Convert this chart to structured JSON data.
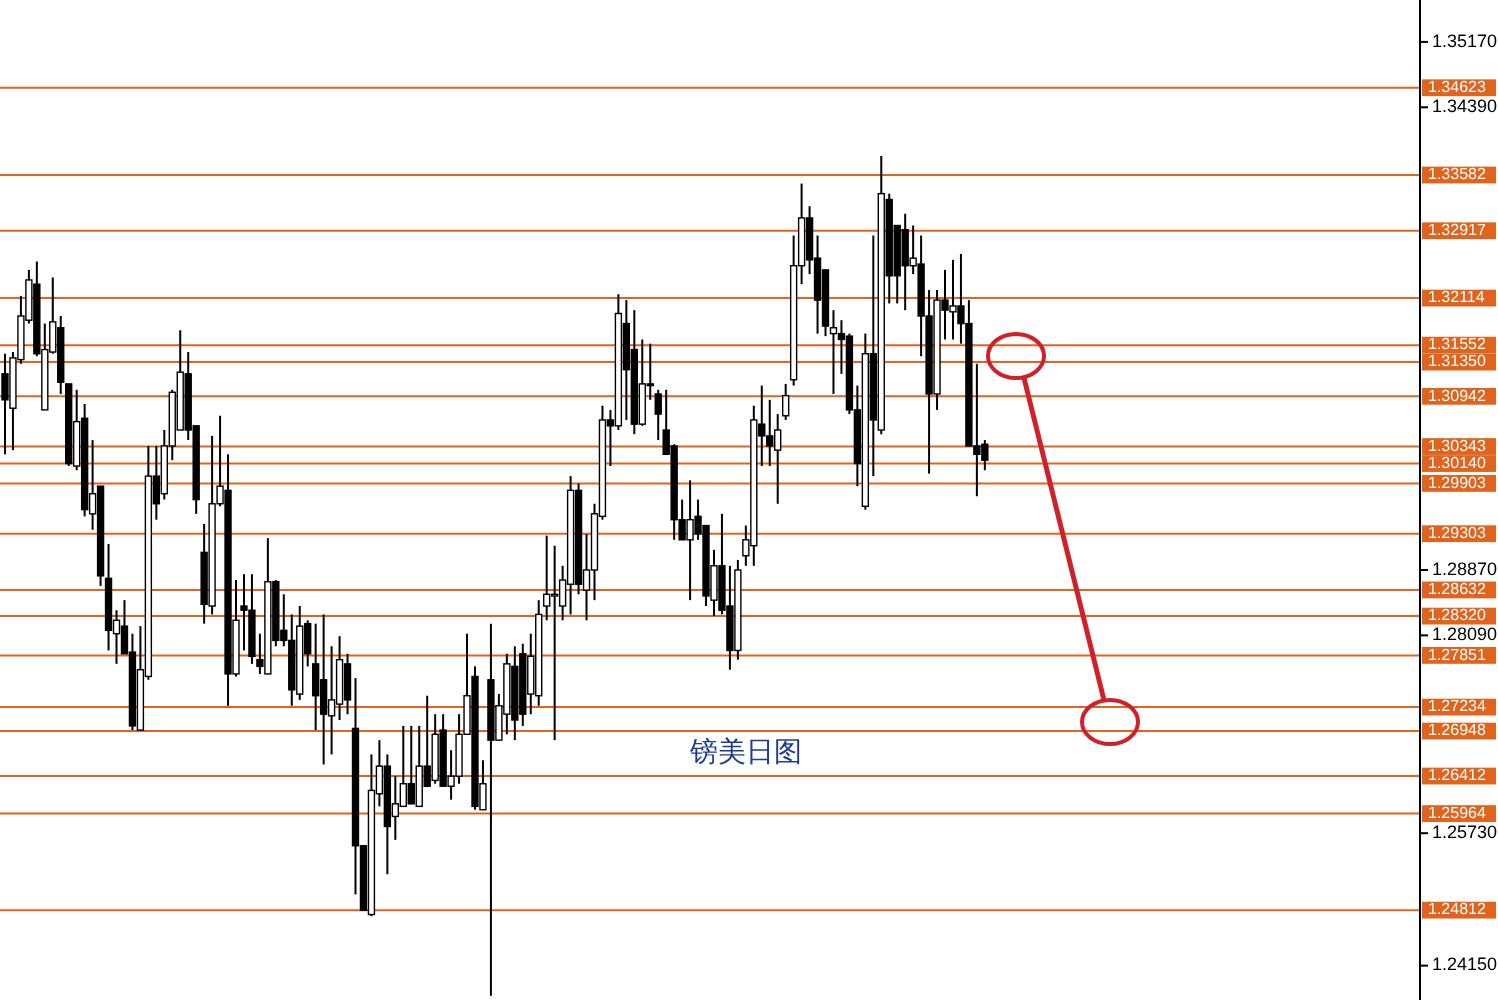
{
  "chart_data": {
    "type": "candlestick",
    "categories": [
      null,
      null,
      null,
      null,
      null,
      null,
      null,
      null,
      null,
      null,
      null,
      null,
      null,
      null,
      null,
      null,
      null,
      null,
      null,
      null,
      null,
      null,
      null,
      null,
      null,
      null,
      null,
      null,
      null,
      null,
      null,
      null,
      null,
      null,
      null,
      null,
      null,
      null,
      null,
      null,
      null,
      null,
      null,
      null,
      null,
      null,
      null,
      null,
      null,
      null,
      null,
      null,
      null,
      null,
      null,
      null,
      null,
      null,
      null,
      null,
      null,
      null,
      null,
      null,
      null,
      null,
      null,
      null,
      null,
      null,
      null,
      null,
      null,
      null,
      null,
      null,
      null,
      null,
      null,
      null,
      null,
      null,
      null,
      null,
      null,
      null,
      null,
      null,
      null,
      null,
      null,
      null,
      null,
      null,
      null,
      null,
      null,
      null,
      null,
      null,
      null,
      null,
      null,
      null,
      null,
      null,
      null,
      null,
      null,
      null,
      null,
      null,
      null,
      null,
      null,
      null,
      null,
      null,
      null,
      null,
      null,
      null,
      null,
      null,
      null,
      null,
      null,
      null,
      null,
      null,
      null,
      null,
      null,
      null,
      null,
      null,
      null,
      null,
      null,
      null,
      null,
      null,
      null,
      null,
      null,
      null,
      null,
      null,
      null,
      null,
      null,
      null,
      null,
      null,
      null,
      null,
      null,
      null,
      null,
      null,
      null,
      null,
      null,
      null,
      null,
      null,
      null,
      null,
      null,
      null,
      null,
      null,
      null,
      null,
      null,
      null,
      null,
      null
    ],
    "ohlc": [
      [
        1.3121,
        1.3145,
        1.3025,
        1.309
      ],
      [
        1.308,
        1.3147,
        1.303,
        1.314
      ],
      [
        1.3138,
        1.3214,
        1.3133,
        1.319
      ],
      [
        1.3185,
        1.3245,
        1.3181,
        1.3233
      ],
      [
        1.3228,
        1.3255,
        1.3142,
        1.3145
      ],
      [
        1.3078,
        1.3181,
        1.3078,
        1.315
      ],
      [
        1.3147,
        1.3236,
        1.3145,
        1.3183
      ],
      [
        1.3176,
        1.319,
        1.3097,
        1.3111
      ],
      [
        1.3109,
        1.3109,
        1.3011,
        1.3014
      ],
      [
        1.3011,
        1.3102,
        1.3006,
        1.3064
      ],
      [
        1.3068,
        1.3085,
        1.2951,
        1.2959
      ],
      [
        1.2954,
        1.3042,
        1.2935,
        1.2978
      ],
      [
        1.2987,
        1.2987,
        1.2868,
        1.288
      ],
      [
        1.2877,
        1.2918,
        1.2791,
        1.2815
      ],
      [
        1.2811,
        1.2839,
        1.2775,
        1.2827
      ],
      [
        1.282,
        1.2851,
        1.2787,
        1.2787
      ],
      [
        1.2789,
        1.2811,
        1.2696,
        1.2701
      ],
      [
        1.2696,
        1.282,
        1.2696,
        1.2768
      ],
      [
        1.276,
        1.3035,
        1.2756,
        1.2999
      ],
      [
        1.2999,
        1.3035,
        1.2947,
        1.2966
      ],
      [
        1.2978,
        1.3054,
        1.2971,
        1.3035
      ],
      [
        1.3035,
        1.3102,
        1.3018,
        1.3099
      ],
      [
        1.3054,
        1.3173,
        1.3054,
        1.3123
      ],
      [
        1.3121,
        1.3147,
        1.3042,
        1.3054
      ],
      [
        1.3059,
        1.3059,
        1.2954,
        1.2971
      ],
      [
        1.2908,
        1.2942,
        1.2823,
        1.2846
      ],
      [
        1.2844,
        1.3047,
        1.2834,
        1.2966
      ],
      [
        1.2966,
        1.3071,
        1.2963,
        1.2987
      ],
      [
        1.2982,
        1.3025,
        1.2725,
        1.2763
      ],
      [
        1.2763,
        1.2875,
        1.276,
        1.2827
      ],
      [
        1.2844,
        1.2882,
        1.2791,
        1.2839
      ],
      [
        1.2839,
        1.2882,
        1.2775,
        1.2784
      ],
      [
        1.278,
        1.2811,
        1.2763,
        1.2772
      ],
      [
        1.2763,
        1.2925,
        1.2763,
        1.2873
      ],
      [
        1.2873,
        1.2875,
        1.2796,
        1.2803
      ],
      [
        1.2815,
        1.2858,
        1.2796,
        1.2803
      ],
      [
        1.2803,
        1.2834,
        1.2725,
        1.2744
      ],
      [
        1.2739,
        1.2844,
        1.2732,
        1.282
      ],
      [
        1.2823,
        1.2827,
        1.2772,
        1.2787
      ],
      [
        1.2775,
        1.2823,
        1.2696,
        1.2737
      ],
      [
        1.2756,
        1.2834,
        1.2655,
        1.2715
      ],
      [
        1.2713,
        1.2796,
        1.2667,
        1.2732
      ],
      [
        1.2727,
        1.2808,
        1.2708,
        1.278
      ],
      [
        1.2775,
        1.2787,
        1.2715,
        1.2732
      ],
      [
        1.2698,
        1.2758,
        1.25,
        1.2558
      ],
      [
        1.2558,
        1.2558,
        1.2481,
        1.2481
      ],
      [
        1.2476,
        1.2667,
        1.2474,
        1.2624
      ],
      [
        1.262,
        1.2684,
        1.2605,
        1.2653
      ],
      [
        1.2653,
        1.2667,
        1.2524,
        1.2581
      ],
      [
        1.2593,
        1.2641,
        1.2565,
        1.2608
      ],
      [
        1.2605,
        1.2701,
        1.2605,
        1.2632
      ],
      [
        1.2632,
        1.2701,
        1.2608,
        1.2608
      ],
      [
        1.2605,
        1.2701,
        1.2605,
        1.2653
      ],
      [
        1.2653,
        1.2737,
        1.2629,
        1.2629
      ],
      [
        1.2636,
        1.2715,
        1.2632,
        1.2691
      ],
      [
        1.2696,
        1.2715,
        1.2629,
        1.2629
      ],
      [
        1.2629,
        1.2672,
        1.2613,
        1.2641
      ],
      [
        1.2641,
        1.2715,
        1.2632,
        1.2691
      ],
      [
        1.2691,
        1.2811,
        1.2691,
        1.2737
      ],
      [
        1.276,
        1.2772,
        1.2601,
        1.2605
      ],
      [
        1.2601,
        1.266,
        1.2601,
        1.2632
      ],
      [
        1.2756,
        1.2823,
        1.2379,
        1.2684
      ],
      [
        1.2684,
        1.2739,
        1.2684,
        1.2725
      ],
      [
        1.2715,
        1.2787,
        1.2691,
        1.2775
      ],
      [
        1.2772,
        1.2796,
        1.2684,
        1.2708
      ],
      [
        1.2787,
        1.2799,
        1.2701,
        1.2715
      ],
      [
        1.2739,
        1.2811,
        1.2715,
        1.2784
      ],
      [
        1.2737,
        1.2851,
        1.2725,
        1.2834
      ],
      [
        1.2844,
        1.2928,
        1.2827,
        1.2858
      ],
      [
        1.2856,
        1.2916,
        1.2684,
        1.2858
      ],
      [
        1.2844,
        1.2892,
        1.2827,
        1.2875
      ],
      [
        1.287,
        1.2999,
        1.2834,
        1.2982
      ],
      [
        1.2982,
        1.299,
        1.2858,
        1.287
      ],
      [
        1.2863,
        1.293,
        1.2827,
        1.2887
      ],
      [
        1.2887,
        1.2966,
        1.2851,
        1.2954
      ],
      [
        1.2951,
        1.3083,
        1.2947,
        1.3066
      ],
      [
        1.3066,
        1.3078,
        1.3011,
        1.3059
      ],
      [
        1.3059,
        1.3216,
        1.3054,
        1.3193
      ],
      [
        1.3181,
        1.3209,
        1.3066,
        1.3126
      ],
      [
        1.315,
        1.3197,
        1.3049,
        1.3061
      ],
      [
        1.3061,
        1.3162,
        1.3059,
        1.3109
      ],
      [
        1.3109,
        1.3157,
        1.309,
        1.3107
      ],
      [
        1.3097,
        1.3102,
        1.3042,
        1.3073
      ],
      [
        1.3054,
        1.3102,
        1.3025,
        1.3025
      ],
      [
        1.3035,
        1.3037,
        1.2923,
        1.2947
      ],
      [
        1.2947,
        1.2971,
        1.2923,
        1.2923
      ],
      [
        1.2923,
        1.2994,
        1.2851,
        1.2947
      ],
      [
        1.2951,
        1.2971,
        1.2923,
        1.293
      ],
      [
        1.294,
        1.294,
        1.2844,
        1.2856
      ],
      [
        1.2851,
        1.2911,
        1.2832,
        1.2892
      ],
      [
        1.2892,
        1.2954,
        1.2834,
        1.2839
      ],
      [
        1.2844,
        1.2892,
        1.2768,
        1.2791
      ],
      [
        1.2791,
        1.2899,
        1.278,
        1.2887
      ],
      [
        1.2904,
        1.294,
        1.2892,
        1.2923
      ],
      [
        1.2916,
        1.3083,
        1.2892,
        1.3066
      ],
      [
        1.3061,
        1.3107,
        1.3011,
        1.3047
      ],
      [
        1.3047,
        1.309,
        1.3011,
        1.3035
      ],
      [
        1.303,
        1.3073,
        1.2966,
        1.3054
      ],
      [
        1.3071,
        1.3109,
        1.3066,
        1.3095
      ],
      [
        1.3114,
        1.3286,
        1.3107,
        1.325
      ],
      [
        1.325,
        1.3348,
        1.3228,
        1.3307
      ],
      [
        1.3307,
        1.3321,
        1.324,
        1.3257
      ],
      [
        1.3259,
        1.3286,
        1.3169,
        1.3209
      ],
      [
        1.3245,
        1.3245,
        1.3166,
        1.3178
      ],
      [
        1.3169,
        1.3197,
        1.3097,
        1.3176
      ],
      [
        1.3169,
        1.3185,
        1.3121,
        1.3162
      ],
      [
        1.3166,
        1.3169,
        1.3073,
        1.3078
      ],
      [
        1.3078,
        1.3107,
        1.2987,
        1.3014
      ],
      [
        1.2963,
        1.3169,
        1.2959,
        1.3145
      ],
      [
        1.3145,
        1.3286,
        1.2999,
        1.3066
      ],
      [
        1.3054,
        1.3381,
        1.3049,
        1.3336
      ],
      [
        1.3329,
        1.3336,
        1.3205,
        1.3238
      ],
      [
        1.3298,
        1.3298,
        1.3205,
        1.3238
      ],
      [
        1.3293,
        1.3312,
        1.3197,
        1.325
      ],
      [
        1.325,
        1.3298,
        1.324,
        1.3259
      ],
      [
        1.3252,
        1.3286,
        1.3142,
        1.319
      ],
      [
        1.319,
        1.3221,
        1.3002,
        1.3097
      ],
      [
        1.3097,
        1.3221,
        1.3078,
        1.3209
      ],
      [
        1.3209,
        1.3245,
        1.3162,
        1.3197
      ],
      [
        1.3195,
        1.3257,
        1.3162,
        1.3202
      ],
      [
        1.3202,
        1.3264,
        1.3157,
        1.3181
      ],
      [
        1.3181,
        1.3209,
        1.3035,
        1.3035
      ],
      [
        1.3035,
        1.3133,
        1.2975,
        1.3025
      ],
      [
        1.3037,
        1.3042,
        1.3006,
        1.3018
      ],
      null,
      null,
      null,
      null,
      null,
      null,
      null,
      null,
      null,
      null,
      null,
      null,
      null,
      null,
      null,
      null,
      null,
      null,
      null,
      null,
      null,
      null,
      null,
      null,
      null,
      null,
      null,
      null,
      null,
      null,
      null,
      null,
      null,
      null,
      null,
      null,
      null,
      null,
      null,
      null,
      null,
      null,
      null,
      null,
      null,
      null,
      null,
      null,
      null,
      null,
      null,
      null,
      null,
      null
    ],
    "ylim": [
      1.2374,
      1.3567
    ],
    "yticks": [
      {
        "value": 1.3517,
        "label": "1.35170"
      },
      {
        "value": 1.3439,
        "label": "1.34390"
      },
      {
        "value": 1.2887,
        "label": "1.28870"
      },
      {
        "value": 1.2809,
        "label": "1.28090"
      },
      {
        "value": 1.2573,
        "label": "1.25730"
      },
      {
        "value": 1.2415,
        "label": "1.24150"
      }
    ],
    "tick_labels": "y",
    "ref_lines": [
      {
        "axis": "y",
        "value": 1.34623,
        "label": "1.34623",
        "color": "#e0641e"
      },
      {
        "axis": "y",
        "value": 1.33582,
        "label": "1.33582",
        "color": "#e0641e"
      },
      {
        "axis": "y",
        "value": 1.32917,
        "label": "1.32917",
        "color": "#e0641e"
      },
      {
        "axis": "y",
        "value": 1.32114,
        "label": "1.32114",
        "color": "#e0641e"
      },
      {
        "axis": "y",
        "value": 1.31552,
        "label": "1.31552",
        "color": "#e0641e"
      },
      {
        "axis": "y",
        "value": 1.3135,
        "label": "1.31350",
        "color": "#e0641e"
      },
      {
        "axis": "y",
        "value": 1.30942,
        "label": "1.30942",
        "color": "#e0641e"
      },
      {
        "axis": "y",
        "value": 1.30343,
        "label": "1.30343",
        "color": "#e0641e"
      },
      {
        "axis": "y",
        "value": 1.3014,
        "label": "1.30140",
        "color": "#e0641e"
      },
      {
        "axis": "y",
        "value": 1.29903,
        "label": "1.29903",
        "color": "#e0641e"
      },
      {
        "axis": "y",
        "value": 1.29303,
        "label": "1.29303",
        "color": "#e0641e"
      },
      {
        "axis": "y",
        "value": 1.28632,
        "label": "1.28632",
        "color": "#e0641e"
      },
      {
        "axis": "y",
        "value": 1.2832,
        "label": "1.28320",
        "color": "#e0641e"
      },
      {
        "axis": "y",
        "value": 1.27851,
        "label": "1.27851",
        "color": "#e0641e"
      },
      {
        "axis": "y",
        "value": 1.27234,
        "label": "1.27234",
        "color": "#e0641e"
      },
      {
        "axis": "y",
        "value": 1.26948,
        "label": "1.26948",
        "color": "#e0641e"
      },
      {
        "axis": "y",
        "value": 1.26412,
        "label": "1.26412",
        "color": "#e0641e"
      },
      {
        "axis": "y",
        "value": 1.25964,
        "label": "1.25964",
        "color": "#e0641e"
      },
      {
        "axis": "y",
        "value": 1.24812,
        "label": "1.24812",
        "color": "#e0641e"
      }
    ],
    "annotations": [
      "镑美日图"
    ]
  }
}
